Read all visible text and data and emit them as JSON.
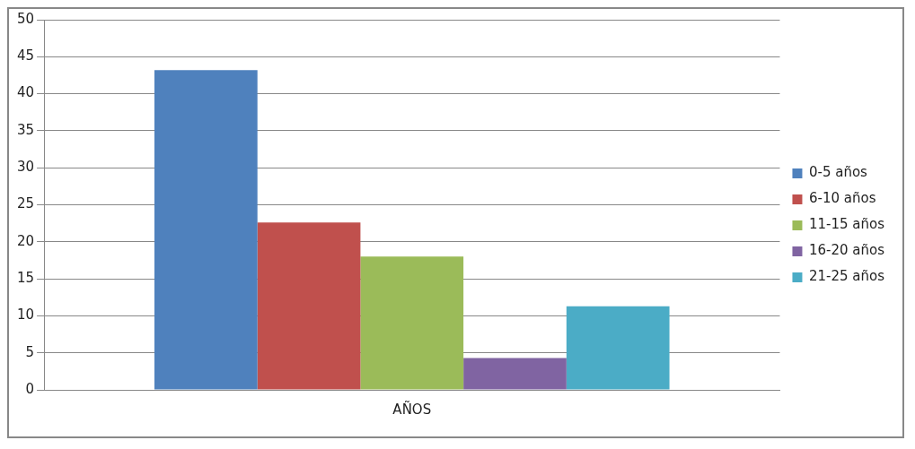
{
  "chart_data": {
    "type": "bar",
    "categories": [
      "AÑOS"
    ],
    "series": [
      {
        "name": "0-5 años",
        "color": "#4f81bd",
        "values": [
          43.2
        ]
      },
      {
        "name": "6-10 años",
        "color": "#c0504d",
        "values": [
          22.6
        ]
      },
      {
        "name": "11-15 años",
        "color": "#9bbb59",
        "values": [
          18
        ]
      },
      {
        "name": "16-20 años",
        "color": "#8064a2",
        "values": [
          4.3
        ]
      },
      {
        "name": "21-25 años",
        "color": "#4bacc6",
        "values": [
          11.3
        ]
      }
    ],
    "ylim": [
      0,
      50
    ],
    "yticks": [
      0,
      5,
      10,
      15,
      20,
      25,
      30,
      35,
      40,
      45,
      50
    ],
    "grid": "y",
    "legend": "right"
  }
}
